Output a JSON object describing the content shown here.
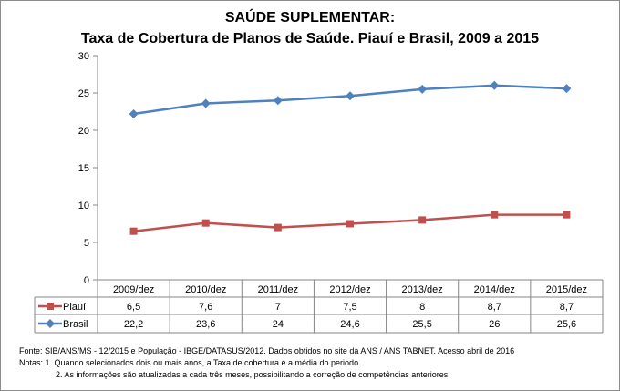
{
  "chart_data": {
    "type": "line",
    "title": "SAÚDE SUPLEMENTAR:",
    "subtitle": "Taxa de Cobertura de Planos de Saúde. Piauí e Brasil, 2009 a 2015",
    "categories": [
      "2009/dez",
      "2010/dez",
      "2011/dez",
      "2012/dez",
      "2013/dez",
      "2014/dez",
      "2015/dez"
    ],
    "series": [
      {
        "name": "Piauí",
        "values": [
          6.5,
          7.6,
          7,
          7.5,
          8,
          8.7,
          8.7
        ],
        "labels": [
          "6,5",
          "7,6",
          "7",
          "7,5",
          "8",
          "8,7",
          "8,7"
        ],
        "color": "#c0504d",
        "marker": "square"
      },
      {
        "name": "Brasil",
        "values": [
          22.2,
          23.6,
          24,
          24.6,
          25.5,
          26,
          25.6
        ],
        "labels": [
          "22,2",
          "23,6",
          "24",
          "24,6",
          "25,5",
          "26",
          "25,6"
        ],
        "color": "#4f81bd",
        "marker": "diamond"
      }
    ],
    "ylim": [
      0,
      30
    ],
    "yticks": [
      "0",
      "5",
      "10",
      "15",
      "20",
      "25",
      "30"
    ],
    "grid": false,
    "legend": "data-table"
  },
  "notes": {
    "source": "Fonte: SIB/ANS/MS - 12/2015 e População - IBGE/DATASUS/2012. Dados obtidos no site da ANS / ANS TABNET. Acesso abril de 2016",
    "note1": "Notas: 1. Quando selecionados dois ou mais anos, a Taxa de cobertura é a média do periodo.",
    "note2": "2. As informações são atualizadas a cada três meses, possibilitando a correção de competências anteriores."
  }
}
